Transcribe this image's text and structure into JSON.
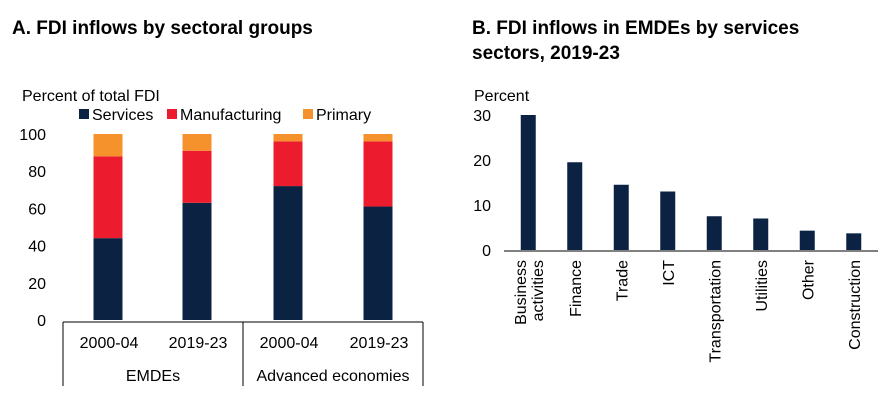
{
  "panel_a": {
    "title": "A. FDI inflows by sectoral groups",
    "chart_data": {
      "type": "bar",
      "stacked": true,
      "title": "A. FDI inflows by sectoral groups",
      "ylabel": "Percent of total FDI",
      "ylim": [
        0,
        100
      ],
      "yticks": [
        0,
        20,
        40,
        60,
        80,
        100
      ],
      "categories": [
        "2000-04",
        "2019-23",
        "2000-04",
        "2019-23"
      ],
      "groups": [
        {
          "label": "EMDEs",
          "span": [
            0,
            1
          ]
        },
        {
          "label": "Advanced economies",
          "span": [
            2,
            3
          ]
        }
      ],
      "series": [
        {
          "name": "Services",
          "color": "#0b2242",
          "values": [
            44,
            63,
            72,
            61
          ]
        },
        {
          "name": "Manufacturing",
          "color": "#ec1c2e",
          "values": [
            44,
            28,
            24,
            35
          ]
        },
        {
          "name": "Primary",
          "color": "#f6922c",
          "values": [
            12,
            9,
            4,
            4
          ]
        }
      ],
      "legend": "top"
    }
  },
  "panel_b": {
    "title_line1": "B. FDI inflows in EMDEs by services",
    "title_line2": "sectors, 2019-23",
    "chart_data": {
      "type": "bar",
      "title": "B. FDI inflows in EMDEs by services sectors, 2019-23",
      "ylabel": "Percent",
      "ylim": [
        0,
        30
      ],
      "yticks": [
        0,
        10,
        20,
        30
      ],
      "categories": [
        [
          "Business",
          "activities"
        ],
        [
          "Finance"
        ],
        [
          "Trade"
        ],
        [
          "ICT"
        ],
        [
          "Transportation"
        ],
        [
          "Utilities"
        ],
        [
          "Other"
        ],
        [
          "Construction"
        ]
      ],
      "values": [
        30,
        19.5,
        14.5,
        13,
        7.5,
        7,
        4.3,
        3.7
      ],
      "color": "#0b2242"
    }
  }
}
